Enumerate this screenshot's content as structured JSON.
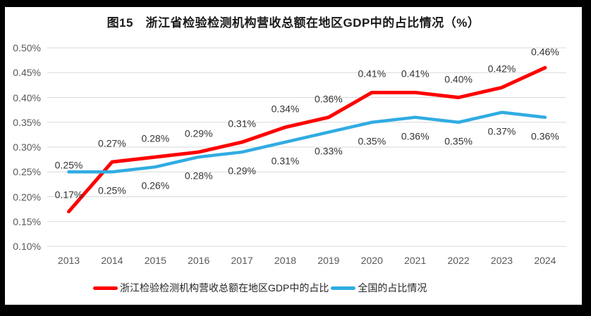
{
  "title": "图15　浙江省检验检测机构营收总额在地区GDP中的占比情况（%）",
  "chart_data": {
    "type": "line",
    "title": "图15　浙江省检验检测机构营收总额在地区GDP中的占比情况（%）",
    "categories": [
      "2013",
      "2014",
      "2015",
      "2016",
      "2017",
      "2018",
      "2019",
      "2020",
      "2021",
      "2022",
      "2023",
      "2024"
    ],
    "series": [
      {
        "name": "浙江检验检测机构营收总额在地区GDP中的占比",
        "color": "#FE0000",
        "values": [
          0.17,
          0.27,
          0.28,
          0.29,
          0.31,
          0.34,
          0.36,
          0.41,
          0.41,
          0.4,
          0.42,
          0.46
        ],
        "labels": [
          "0.17%",
          "0.27%",
          "0.28%",
          "0.29%",
          "0.31%",
          "0.34%",
          "0.36%",
          "0.41%",
          "0.41%",
          "0.40%",
          "0.42%",
          "0.46%"
        ]
      },
      {
        "name": "全国的占比情况",
        "color": "#30ACE2",
        "values": [
          0.25,
          0.25,
          0.26,
          0.28,
          0.29,
          0.31,
          0.33,
          0.35,
          0.36,
          0.35,
          0.37,
          0.36
        ],
        "labels": [
          "0.25%",
          "0.25%",
          "0.26%",
          "0.28%",
          "0.29%",
          "0.31%",
          "0.33%",
          "0.35%",
          "0.36%",
          "0.35%",
          "0.37%",
          "0.36%"
        ]
      }
    ],
    "xlabel": "",
    "ylabel": "",
    "y_axis": {
      "min": 0.1,
      "max": 0.5,
      "step": 0.05,
      "tick_labels": [
        "0.10%",
        "0.15%",
        "0.20%",
        "0.25%",
        "0.30%",
        "0.35%",
        "0.40%",
        "0.45%",
        "0.50%"
      ]
    },
    "grid": true,
    "legend_position": "bottom"
  },
  "colors": {
    "grid": "#D9D9D9",
    "axis_text": "#595959",
    "data_label_text": "#333333",
    "frame": "#000000",
    "background": "#FFFFFF"
  }
}
